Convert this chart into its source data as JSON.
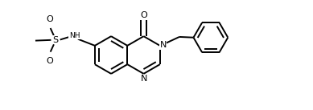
{
  "bg_color": "#ffffff",
  "line_color": "#000000",
  "line_width": 1.4,
  "font_size": 7.0,
  "fig_width": 3.89,
  "fig_height": 1.37,
  "dpi": 100,
  "xlim": [
    0,
    10
  ],
  "ylim": [
    0,
    3.52
  ],
  "R_benz": 0.6,
  "R_pyrim": 0.6,
  "R_phenyl": 0.55
}
